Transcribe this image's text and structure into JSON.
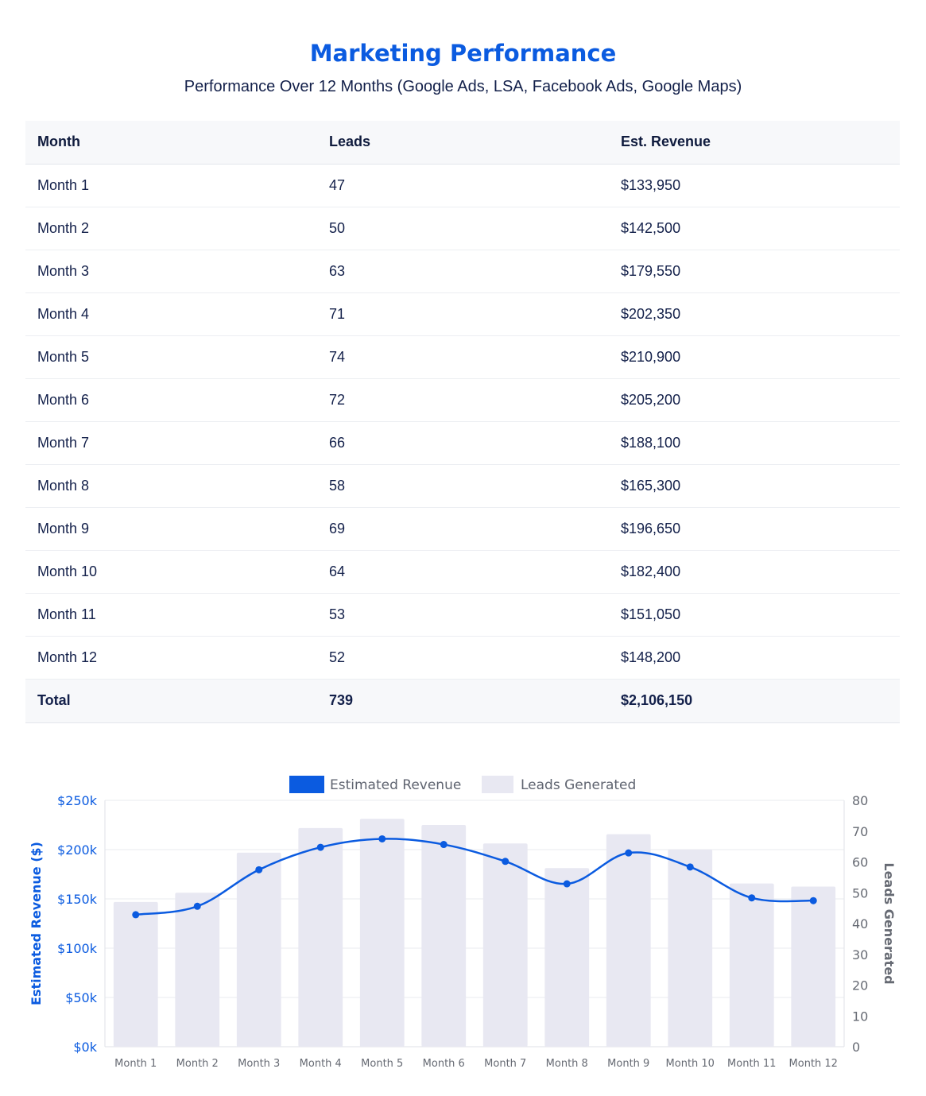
{
  "header": {
    "title": "Marketing Performance",
    "subtitle": "Performance Over 12 Months (Google Ads, LSA, Facebook Ads, Google Maps)"
  },
  "table": {
    "headers": [
      "Month",
      "Leads",
      "Est. Revenue"
    ],
    "rows": [
      [
        "Month 1",
        "47",
        "$133,950"
      ],
      [
        "Month 2",
        "50",
        "$142,500"
      ],
      [
        "Month 3",
        "63",
        "$179,550"
      ],
      [
        "Month 4",
        "71",
        "$202,350"
      ],
      [
        "Month 5",
        "74",
        "$210,900"
      ],
      [
        "Month 6",
        "72",
        "$205,200"
      ],
      [
        "Month 7",
        "66",
        "$188,100"
      ],
      [
        "Month 8",
        "58",
        "$165,300"
      ],
      [
        "Month 9",
        "69",
        "$196,650"
      ],
      [
        "Month 10",
        "64",
        "$182,400"
      ],
      [
        "Month 11",
        "53",
        "$151,050"
      ],
      [
        "Month 12",
        "52",
        "$148,200"
      ]
    ],
    "total": [
      "Total",
      "739",
      "$2,106,150"
    ]
  },
  "chart_data": {
    "type": "bar",
    "categories": [
      "Month 1",
      "Month 2",
      "Month 3",
      "Month 4",
      "Month 5",
      "Month 6",
      "Month 7",
      "Month 8",
      "Month 9",
      "Month 10",
      "Month 11",
      "Month 12"
    ],
    "series": [
      {
        "name": "Estimated Revenue",
        "type": "line",
        "axis": "left",
        "color": "#0b5be0",
        "values": [
          133950,
          142500,
          179550,
          202350,
          210900,
          205200,
          188100,
          165300,
          196650,
          182400,
          151050,
          148200
        ]
      },
      {
        "name": "Leads Generated",
        "type": "bar",
        "axis": "right",
        "color": "#e8e8f2",
        "values": [
          47,
          50,
          63,
          71,
          74,
          72,
          66,
          58,
          69,
          64,
          53,
          52
        ]
      }
    ],
    "y_left": {
      "label": "Estimated Revenue ($)",
      "range": [
        0,
        250000
      ],
      "ticks": [
        "$0k",
        "$50k",
        "$100k",
        "$150k",
        "$200k",
        "$250k"
      ]
    },
    "y_right": {
      "label": "Leads Generated",
      "range": [
        0,
        80
      ],
      "ticks": [
        "0",
        "10",
        "20",
        "30",
        "40",
        "50",
        "60",
        "70",
        "80"
      ]
    },
    "legend_position": "top-center",
    "grid": true
  }
}
